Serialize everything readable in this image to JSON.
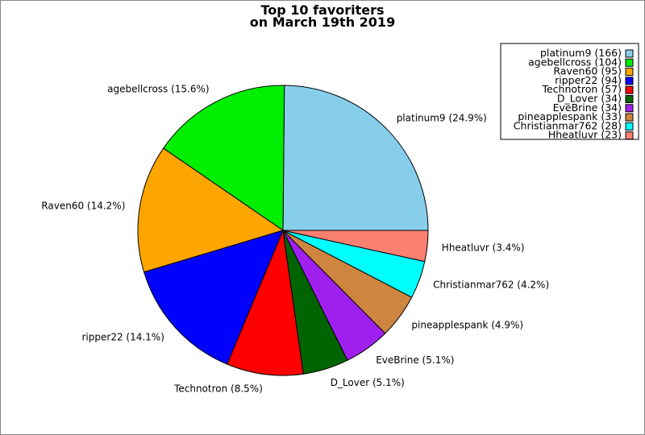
{
  "chart_data": {
    "type": "pie",
    "title": [
      "Top 10 favoriters",
      "on March 19th 2019"
    ],
    "slices": [
      {
        "label": "platinum9",
        "value": 166,
        "percent_label": "platinum9 (24.9%)",
        "legend_label": "platinum9 (166)",
        "color": "#87ceeb"
      },
      {
        "label": "agebellcross",
        "value": 104,
        "percent_label": "agebellcross (15.6%)",
        "legend_label": "agebellcross (104)",
        "color": "#00ee00"
      },
      {
        "label": "Raven60",
        "value": 95,
        "percent_label": "Raven60 (14.2%)",
        "legend_label": "Raven60 (95)",
        "color": "#ffa500"
      },
      {
        "label": "ripper22",
        "value": 94,
        "percent_label": "ripper22 (14.1%)",
        "legend_label": "ripper22 (94)",
        "color": "#0000ff"
      },
      {
        "label": "Technotron",
        "value": 57,
        "percent_label": "Technotron (8.5%)",
        "legend_label": "Technotron (57)",
        "color": "#ff0000"
      },
      {
        "label": "D_Lover",
        "value": 34,
        "percent_label": "D_Lover (5.1%)",
        "legend_label": "D_Lover (34)",
        "color": "#006400"
      },
      {
        "label": "EveBrine",
        "value": 34,
        "percent_label": "EveBrine (5.1%)",
        "legend_label": "EveBrine (34)",
        "color": "#a020f0"
      },
      {
        "label": "pineapplespank",
        "value": 33,
        "percent_label": "pineapplespank (4.9%)",
        "legend_label": "pineapplespank (33)",
        "color": "#cd853f"
      },
      {
        "label": "Christianmar762",
        "value": 28,
        "percent_label": "Christianmar762 (4.2%)",
        "legend_label": "Christianmar762 (28)",
        "color": "#00ffff"
      },
      {
        "label": "Hheatluvr",
        "value": 23,
        "percent_label": "Hheatluvr (3.4%)",
        "legend_label": "Hheatluvr (23)",
        "color": "#fa8072"
      }
    ],
    "start_direction": "east",
    "direction": "counterclockwise",
    "legend_placement": "top-right"
  }
}
